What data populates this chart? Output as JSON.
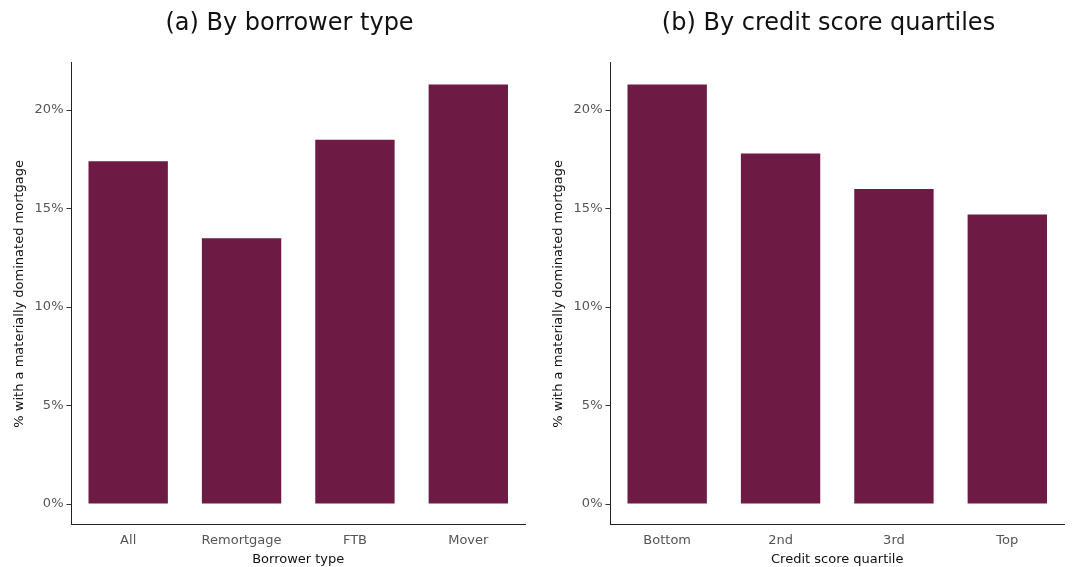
{
  "chart_data": [
    {
      "type": "bar",
      "title": "(a) By borrower type",
      "xlabel": "Borrower type",
      "ylabel": "% with a materially dominated mortgage",
      "categories": [
        "All",
        "Remortgage",
        "FTB",
        "Mover"
      ],
      "values": [
        17.4,
        13.5,
        18.5,
        21.3
      ],
      "color": "#6d1a44",
      "ylim": [
        -1.05,
        22.4
      ],
      "yticks": [
        {
          "value": 0,
          "label": "0%"
        },
        {
          "value": 5,
          "label": "5%"
        },
        {
          "value": 10,
          "label": "10%"
        },
        {
          "value": 15,
          "label": "15%"
        },
        {
          "value": 20,
          "label": "20%"
        }
      ],
      "grid": false,
      "legend": false
    },
    {
      "type": "bar",
      "title": "(b) By credit score quartiles",
      "xlabel": "Credit score quartile",
      "ylabel": "% with a materially dominated mortgage",
      "categories": [
        "Bottom",
        "2nd",
        "3rd",
        "Top"
      ],
      "values": [
        21.3,
        17.8,
        16.0,
        14.7
      ],
      "color": "#6d1a44",
      "ylim": [
        -1.05,
        22.4
      ],
      "yticks": [
        {
          "value": 0,
          "label": "0%"
        },
        {
          "value": 5,
          "label": "5%"
        },
        {
          "value": 10,
          "label": "10%"
        },
        {
          "value": 15,
          "label": "15%"
        },
        {
          "value": 20,
          "label": "20%"
        }
      ],
      "grid": false,
      "legend": false
    }
  ]
}
